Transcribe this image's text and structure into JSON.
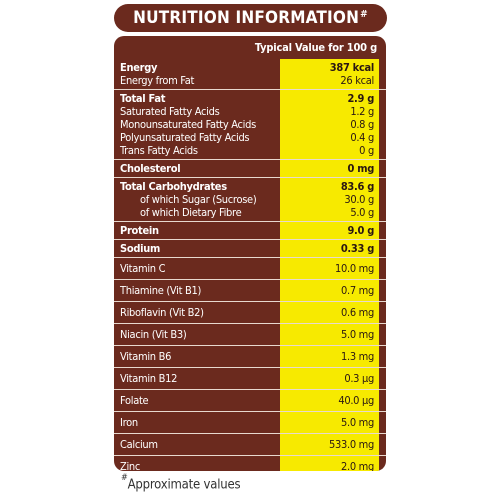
{
  "title": "NUTRITION INFORMATION",
  "title_mark": "#",
  "header": "Typical Value for 100 g",
  "groups": [
    {
      "rows": [
        {
          "label": "Energy",
          "value": "387 kcal",
          "bold": true,
          "indent": false
        },
        {
          "label": "Energy from Fat",
          "value": "26 kcal",
          "bold": false,
          "indent": false
        }
      ]
    },
    {
      "rows": [
        {
          "label": "Total Fat",
          "value": "2.9 g",
          "bold": true,
          "indent": false
        },
        {
          "label": "Saturated Fatty Acids",
          "value": "1.2 g",
          "bold": false,
          "indent": false
        },
        {
          "label": "Monounsaturated Fatty Acids",
          "value": "0.8 g",
          "bold": false,
          "indent": false
        },
        {
          "label": "Polyunsaturated Fatty Acids",
          "value": "0.4 g",
          "bold": false,
          "indent": false
        },
        {
          "label": "Trans Fatty Acids",
          "value": "0 g",
          "bold": false,
          "indent": false
        }
      ]
    },
    {
      "rows": [
        {
          "label": "Cholesterol",
          "value": "0 mg",
          "bold": true,
          "indent": false
        }
      ]
    },
    {
      "rows": [
        {
          "label": "Total Carbohydrates",
          "value": "83.6 g",
          "bold": true,
          "indent": false
        },
        {
          "label": "of which Sugar (Sucrose)",
          "value": "30.0 g",
          "bold": false,
          "indent": true
        },
        {
          "label": "of which Dietary Fibre",
          "value": "5.0 g",
          "bold": false,
          "indent": true
        }
      ]
    },
    {
      "rows": [
        {
          "label": "Protein",
          "value": "9.0 g",
          "bold": true,
          "indent": false
        }
      ]
    },
    {
      "rows": [
        {
          "label": "Sodium",
          "value": "0.33 g",
          "bold": true,
          "indent": false
        }
      ]
    },
    {
      "rows": [
        {
          "label": "Vitamin C",
          "value": "10.0 mg",
          "bold": false,
          "indent": false
        }
      ]
    },
    {
      "rows": [
        {
          "label": "Thiamine (Vit B1)",
          "value": "0.7 mg",
          "bold": false,
          "indent": false
        }
      ]
    },
    {
      "rows": [
        {
          "label": "Riboflavin (Vit B2)",
          "value": "0.6 mg",
          "bold": false,
          "indent": false
        }
      ]
    },
    {
      "rows": [
        {
          "label": "Niacin (Vit B3)",
          "value": "5.0 mg",
          "bold": false,
          "indent": false
        }
      ]
    },
    {
      "rows": [
        {
          "label": "Vitamin B6",
          "value": "1.3 mg",
          "bold": false,
          "indent": false
        }
      ]
    },
    {
      "rows": [
        {
          "label": "Vitamin B12",
          "value": "0.3 µg",
          "bold": false,
          "indent": false
        }
      ]
    },
    {
      "rows": [
        {
          "label": "Folate",
          "value": "40.0 µg",
          "bold": false,
          "indent": false
        }
      ]
    },
    {
      "rows": [
        {
          "label": "Iron",
          "value": "5.0 mg",
          "bold": false,
          "indent": false
        }
      ]
    },
    {
      "rows": [
        {
          "label": "Calcium",
          "value": "533.0 mg",
          "bold": false,
          "indent": false
        }
      ]
    },
    {
      "rows": [
        {
          "label": "Zinc",
          "value": "2.0 mg",
          "bold": false,
          "indent": false
        }
      ]
    }
  ],
  "footnote_mark": "#",
  "footnote": "Approximate values",
  "colors": {
    "panel": "#6b2a1e",
    "value_column": "#f7ea00",
    "text_light": "#ffffff",
    "text_dark": "#2a1712"
  }
}
